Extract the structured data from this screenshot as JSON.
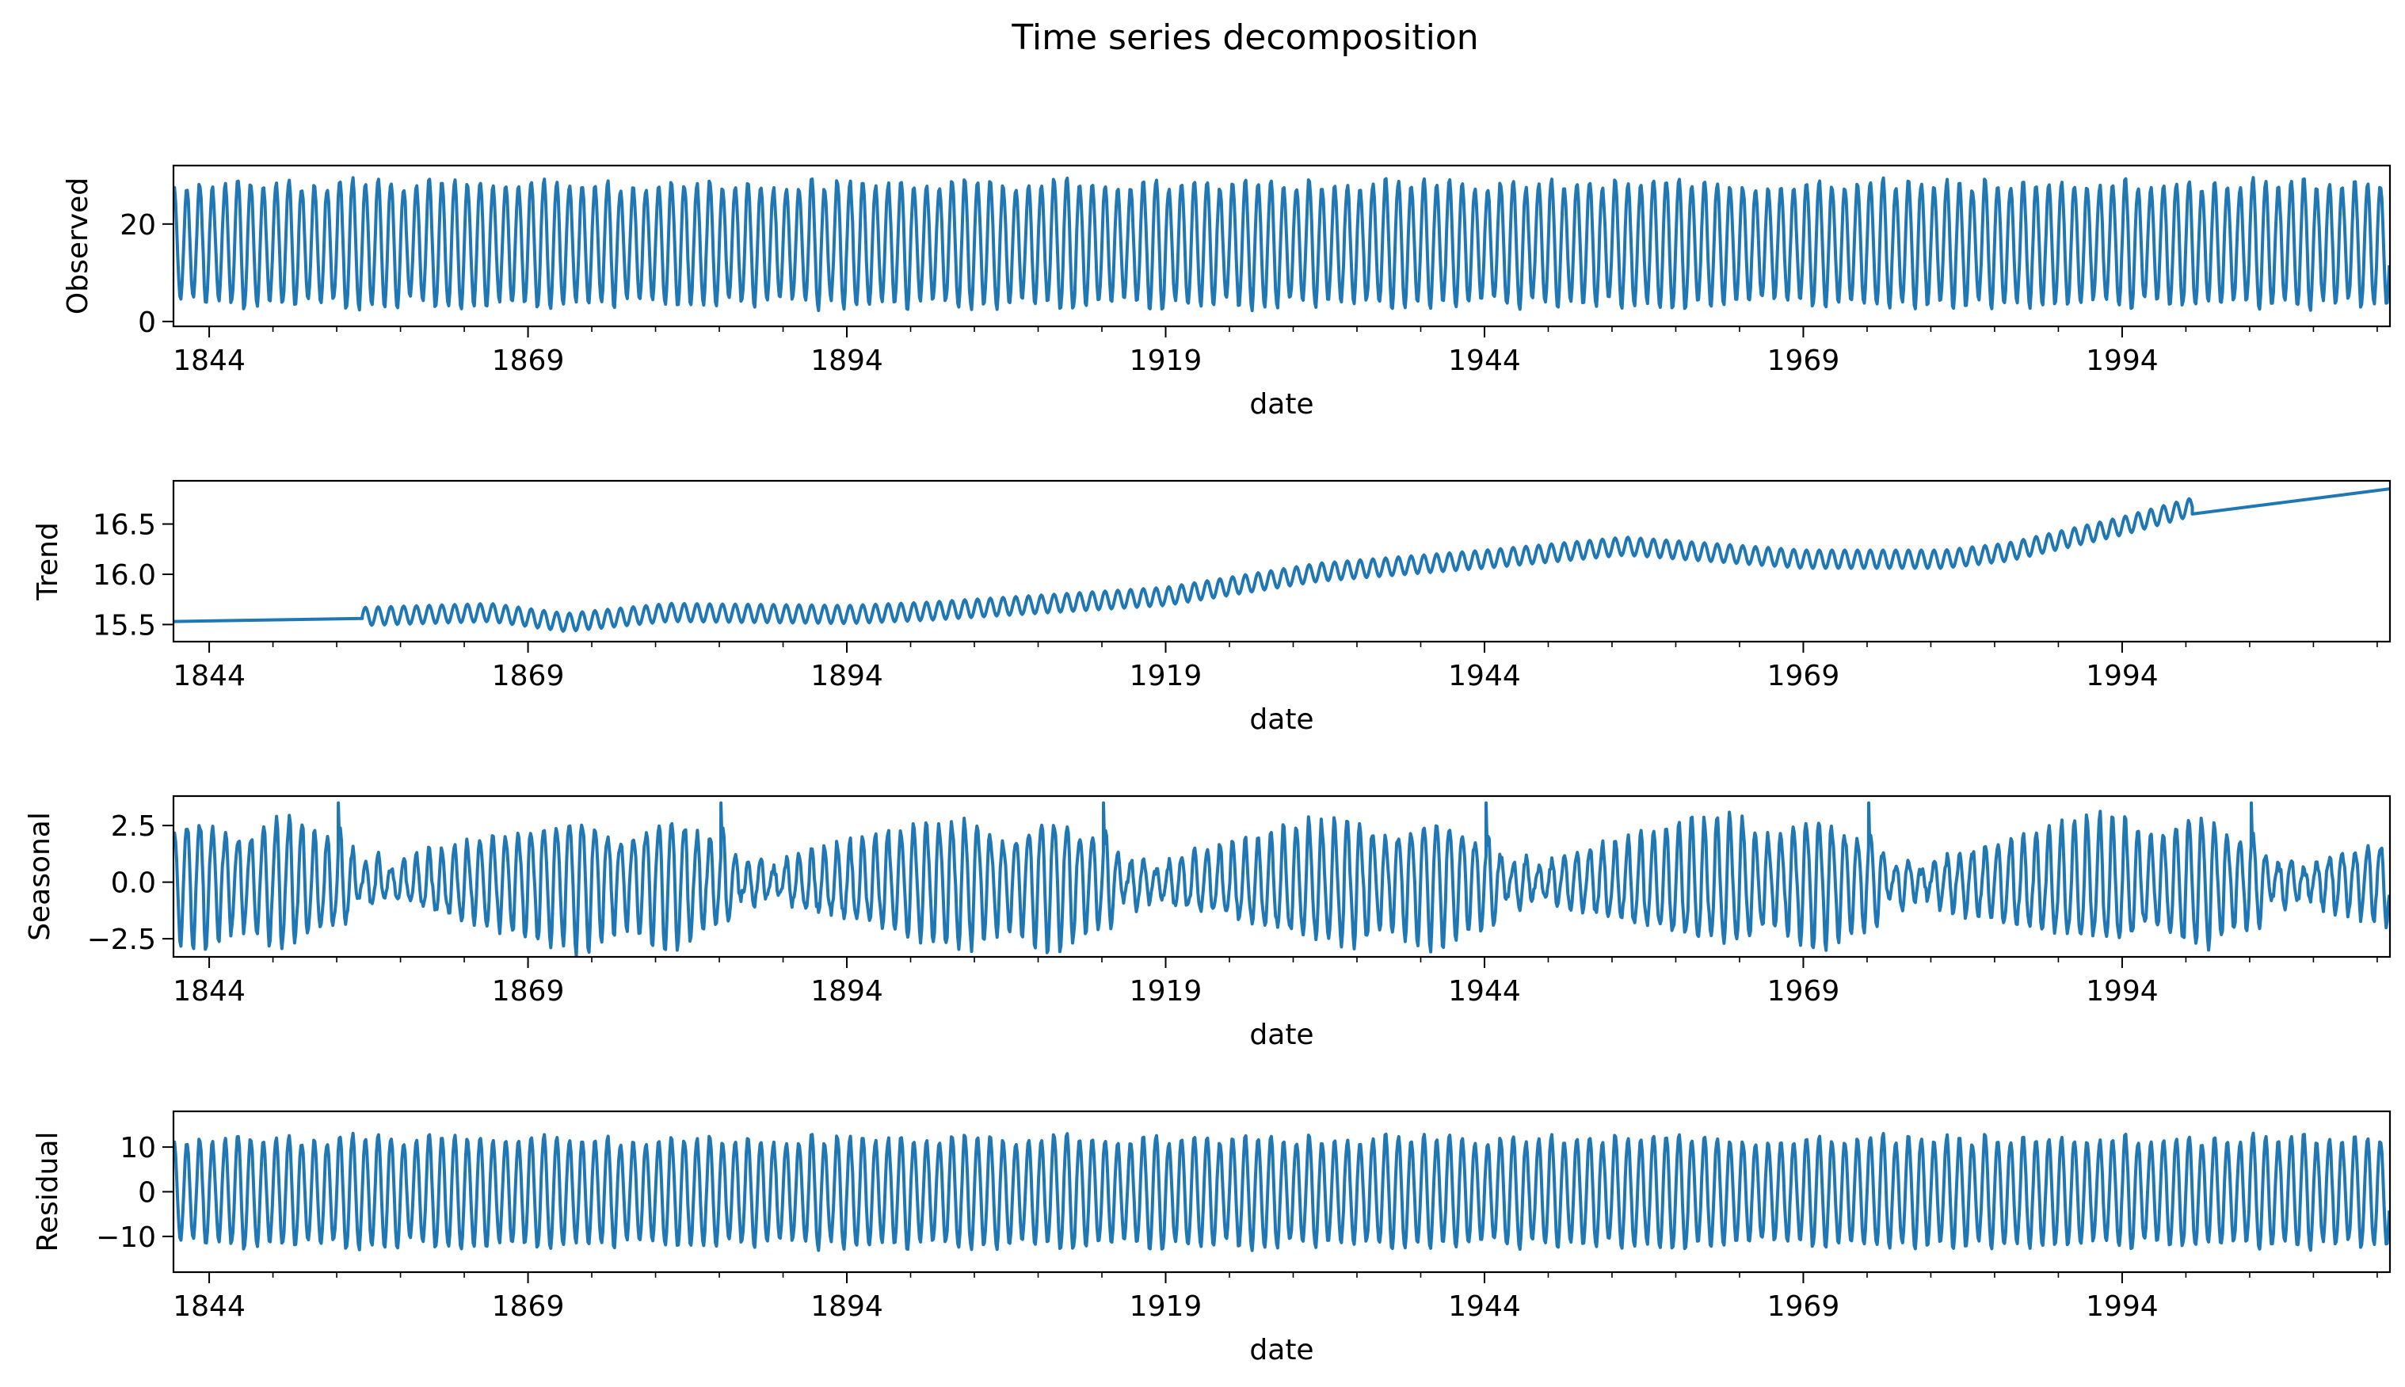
{
  "figure": {
    "title": "Time series decomposition"
  },
  "chart_data": [
    {
      "type": "line",
      "ylabel": "Observed",
      "xlabel": "date",
      "xlim": [
        1841.2,
        2015.0
      ],
      "ylim": [
        -1.0,
        32.0
      ],
      "x_ticks": [
        1844,
        1869,
        1894,
        1919,
        1944,
        1969,
        1994
      ],
      "y_ticks": [
        0,
        20
      ],
      "y_tick_labels": [
        "0",
        "20"
      ],
      "series": [
        {
          "color": "#1f77b4",
          "pattern": "annual-oscillation",
          "start": 1841.2,
          "end": 2015.0,
          "period_years": 1.0,
          "mean": 15.9,
          "amplitude": 12.5,
          "approx_range": [
            0.2,
            30.8
          ]
        }
      ]
    },
    {
      "type": "line",
      "ylabel": "Trend",
      "xlabel": "date",
      "xlim": [
        1841.2,
        2015.0
      ],
      "ylim": [
        15.33,
        16.93
      ],
      "x_ticks": [
        1844,
        1869,
        1894,
        1919,
        1944,
        1969,
        1994
      ],
      "y_ticks": [
        15.5,
        16.0,
        16.5
      ],
      "y_tick_labels": [
        "15.5",
        "16.0",
        "16.5"
      ],
      "series": [
        {
          "color": "#1f77b4",
          "pattern": "trend-with-ripple",
          "linear_segments": [
            {
              "x": [
                1841.2,
                1856.0
              ],
              "y": [
                15.53,
                15.56
              ]
            },
            {
              "x": [
                1999.5,
                2015.0
              ],
              "y": [
                16.6,
                16.85
              ]
            }
          ],
          "ripple_start": 1856.0,
          "ripple_end": 1999.5,
          "ripple_amplitude": 0.09,
          "period_years": 1.0,
          "trend_points": [
            {
              "x": 1856,
              "y": 15.58
            },
            {
              "x": 1866,
              "y": 15.62
            },
            {
              "x": 1872,
              "y": 15.52
            },
            {
              "x": 1880,
              "y": 15.62
            },
            {
              "x": 1894,
              "y": 15.6
            },
            {
              "x": 1900,
              "y": 15.63
            },
            {
              "x": 1919,
              "y": 15.78
            },
            {
              "x": 1931,
              "y": 16.02
            },
            {
              "x": 1944,
              "y": 16.15
            },
            {
              "x": 1955,
              "y": 16.28
            },
            {
              "x": 1969,
              "y": 16.15
            },
            {
              "x": 1980,
              "y": 16.15
            },
            {
              "x": 1985,
              "y": 16.22
            },
            {
              "x": 1994,
              "y": 16.48
            },
            {
              "x": 1999.5,
              "y": 16.67
            }
          ]
        }
      ]
    },
    {
      "type": "line",
      "ylabel": "Seasonal",
      "xlabel": "date",
      "xlim": [
        1841.2,
        2015.0
      ],
      "ylim": [
        -3.3,
        3.8
      ],
      "x_ticks": [
        1844,
        1869,
        1894,
        1919,
        1944,
        1969,
        1994
      ],
      "y_ticks": [
        -2.5,
        0.0,
        2.5
      ],
      "y_tick_labels": [
        "−2.5",
        "0.0",
        "2.5"
      ],
      "series": [
        {
          "color": "#1f77b4",
          "pattern": "repeating-seasonal-cycle",
          "cycle_years": 30.0,
          "cycle_start": 1841.2,
          "period_years": 1.0,
          "max_amplitude": 2.8,
          "approx_range": [
            -3.0,
            3.5
          ]
        }
      ]
    },
    {
      "type": "line",
      "ylabel": "Residual",
      "xlabel": "date",
      "xlim": [
        1841.2,
        2015.0
      ],
      "ylim": [
        -18.0,
        18.0
      ],
      "x_ticks": [
        1844,
        1869,
        1894,
        1919,
        1944,
        1969,
        1994
      ],
      "y_ticks": [
        -10,
        0,
        10
      ],
      "y_tick_labels": [
        "−10",
        "0",
        "10"
      ],
      "series": [
        {
          "color": "#1f77b4",
          "pattern": "annual-oscillation",
          "period_years": 1.0,
          "mean": 0.0,
          "amplitude": 12.0,
          "approx_range": [
            -16.5,
            16.0
          ]
        }
      ]
    }
  ]
}
